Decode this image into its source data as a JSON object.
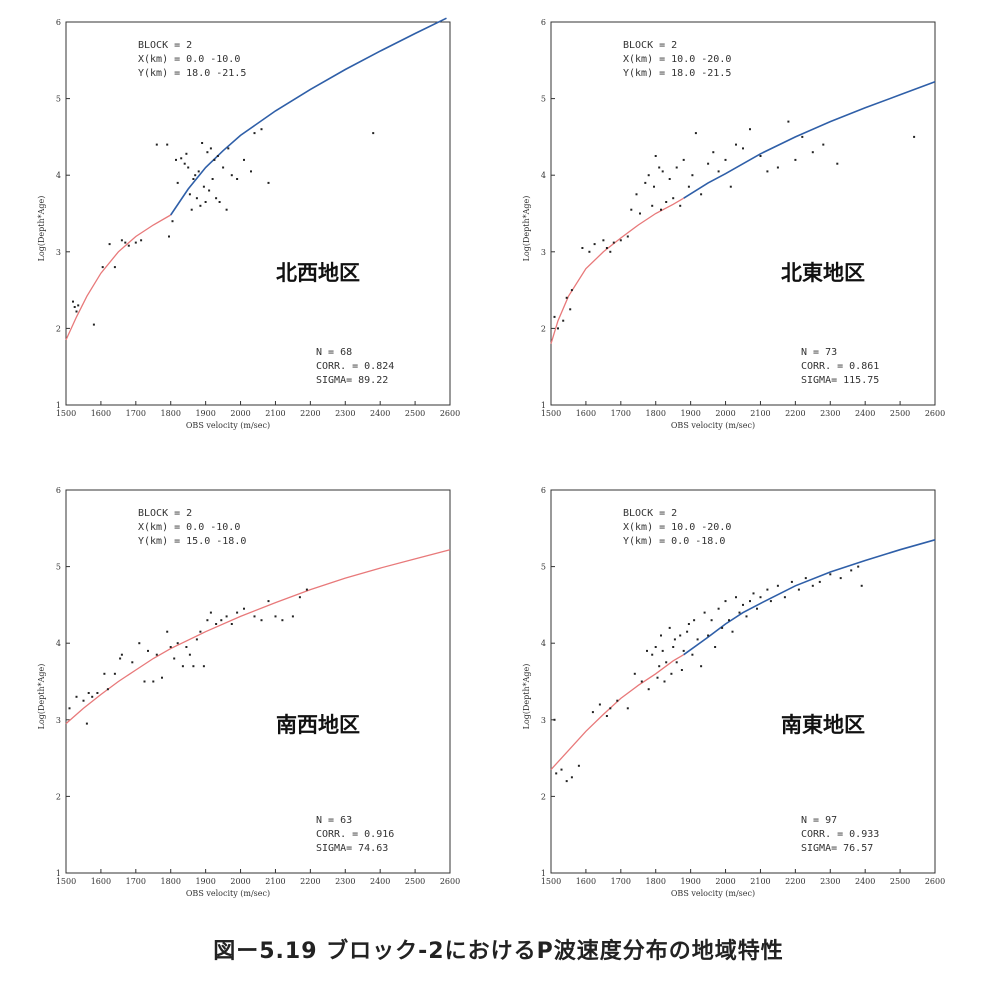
{
  "caption": "図ー5.19 ブロック-2におけるP波速度分布の地域特性",
  "colors": {
    "fit_red": "#e8797a",
    "fit_blue": "#2f5fa8",
    "points": "#222222",
    "frame": "#333333"
  },
  "chart_data": [
    {
      "type": "scatter",
      "region": "北西地区",
      "info": [
        "BLOCK = 2",
        "X(km) = 0.0 -10.0",
        "Y(km) = 18.0 -21.5"
      ],
      "stats": [
        "N = 68",
        "CORR. = 0.824",
        "SIGMA= 89.22"
      ],
      "xlabel": "OBS velocity (m/sec)",
      "ylabel": "Log(Depth*Age)",
      "xlim": [
        1500,
        2600
      ],
      "ylim": [
        1,
        6
      ],
      "xticks": [
        "1500",
        "1600",
        "1700",
        "1800",
        "1900",
        "2000",
        "2100",
        "2200",
        "2300",
        "2400",
        "2500",
        "2600"
      ],
      "yticks": [
        "1",
        "2",
        "3",
        "4",
        "5",
        "6"
      ],
      "fit": {
        "red": [
          [
            1500,
            1.85
          ],
          [
            1530,
            2.15
          ],
          [
            1560,
            2.42
          ],
          [
            1600,
            2.72
          ],
          [
            1650,
            3.0
          ],
          [
            1700,
            3.2
          ],
          [
            1750,
            3.35
          ],
          [
            1800,
            3.48
          ]
        ],
        "blue": [
          [
            1800,
            3.48
          ],
          [
            1850,
            3.82
          ],
          [
            1900,
            4.1
          ],
          [
            1950,
            4.32
          ],
          [
            2000,
            4.52
          ],
          [
            2100,
            4.84
          ],
          [
            2200,
            5.12
          ],
          [
            2300,
            5.38
          ],
          [
            2400,
            5.62
          ],
          [
            2500,
            5.85
          ],
          [
            2590,
            6.05
          ]
        ]
      },
      "points": [
        [
          1520,
          2.35
        ],
        [
          1525,
          2.28
        ],
        [
          1530,
          2.22
        ],
        [
          1535,
          2.3
        ],
        [
          1580,
          2.05
        ],
        [
          1605,
          2.8
        ],
        [
          1625,
          3.1
        ],
        [
          1640,
          2.8
        ],
        [
          1660,
          3.15
        ],
        [
          1670,
          3.12
        ],
        [
          1680,
          3.08
        ],
        [
          1700,
          3.12
        ],
        [
          1715,
          3.15
        ],
        [
          1760,
          4.4
        ],
        [
          1790,
          4.4
        ],
        [
          1795,
          3.2
        ],
        [
          1805,
          3.4
        ],
        [
          1815,
          4.2
        ],
        [
          1820,
          3.9
        ],
        [
          1830,
          4.22
        ],
        [
          1840,
          4.15
        ],
        [
          1845,
          4.28
        ],
        [
          1850,
          4.1
        ],
        [
          1855,
          3.75
        ],
        [
          1860,
          3.55
        ],
        [
          1865,
          3.95
        ],
        [
          1870,
          4.0
        ],
        [
          1875,
          3.7
        ],
        [
          1880,
          4.05
        ],
        [
          1885,
          3.6
        ],
        [
          1890,
          4.42
        ],
        [
          1895,
          3.85
        ],
        [
          1900,
          3.65
        ],
        [
          1905,
          4.3
        ],
        [
          1910,
          3.8
        ],
        [
          1915,
          4.35
        ],
        [
          1920,
          3.95
        ],
        [
          1925,
          4.2
        ],
        [
          1930,
          3.7
        ],
        [
          1935,
          4.25
        ],
        [
          1940,
          3.65
        ],
        [
          1950,
          4.1
        ],
        [
          1960,
          3.55
        ],
        [
          1965,
          4.35
        ],
        [
          1975,
          4.0
        ],
        [
          1990,
          3.95
        ],
        [
          2010,
          4.2
        ],
        [
          2030,
          4.05
        ],
        [
          2040,
          4.55
        ],
        [
          2060,
          4.6
        ],
        [
          2080,
          3.9
        ],
        [
          2380,
          4.55
        ]
      ]
    },
    {
      "type": "scatter",
      "region": "北東地区",
      "info": [
        "BLOCK = 2",
        "X(km) = 10.0 -20.0",
        "Y(km) = 18.0 -21.5"
      ],
      "stats": [
        "N = 73",
        "CORR. = 0.861",
        "SIGMA= 115.75"
      ],
      "xlabel": "OBS velocity (m/sec)",
      "ylabel": "Log(Depth*Age)",
      "xlim": [
        1500,
        2600
      ],
      "ylim": [
        1,
        6
      ],
      "xticks": [
        "1500",
        "1600",
        "1700",
        "1800",
        "1900",
        "2000",
        "2100",
        "2200",
        "2300",
        "2400",
        "2500",
        "2600"
      ],
      "yticks": [
        "1",
        "2",
        "3",
        "4",
        "5",
        "6"
      ],
      "fit": {
        "red": [
          [
            1500,
            1.8
          ],
          [
            1520,
            2.1
          ],
          [
            1550,
            2.42
          ],
          [
            1600,
            2.78
          ],
          [
            1650,
            3.0
          ],
          [
            1700,
            3.18
          ],
          [
            1750,
            3.35
          ],
          [
            1800,
            3.5
          ],
          [
            1850,
            3.62
          ],
          [
            1880,
            3.7
          ]
        ],
        "blue": [
          [
            1880,
            3.7
          ],
          [
            1950,
            3.9
          ],
          [
            2000,
            4.02
          ],
          [
            2100,
            4.28
          ],
          [
            2200,
            4.5
          ],
          [
            2300,
            4.7
          ],
          [
            2400,
            4.88
          ],
          [
            2500,
            5.05
          ],
          [
            2600,
            5.22
          ]
        ]
      },
      "points": [
        [
          1510,
          2.15
        ],
        [
          1520,
          2.0
        ],
        [
          1535,
          2.1
        ],
        [
          1545,
          2.4
        ],
        [
          1555,
          2.25
        ],
        [
          1560,
          2.5
        ],
        [
          1590,
          3.05
        ],
        [
          1610,
          3.0
        ],
        [
          1625,
          3.1
        ],
        [
          1650,
          3.15
        ],
        [
          1660,
          3.05
        ],
        [
          1670,
          3.0
        ],
        [
          1680,
          3.12
        ],
        [
          1700,
          3.15
        ],
        [
          1720,
          3.2
        ],
        [
          1730,
          3.55
        ],
        [
          1745,
          3.75
        ],
        [
          1755,
          3.5
        ],
        [
          1770,
          3.9
        ],
        [
          1780,
          4.0
        ],
        [
          1790,
          3.6
        ],
        [
          1795,
          3.85
        ],
        [
          1800,
          4.25
        ],
        [
          1810,
          4.1
        ],
        [
          1815,
          3.55
        ],
        [
          1820,
          4.05
        ],
        [
          1830,
          3.65
        ],
        [
          1840,
          3.95
        ],
        [
          1850,
          3.7
        ],
        [
          1860,
          4.1
        ],
        [
          1870,
          3.6
        ],
        [
          1880,
          4.2
        ],
        [
          1895,
          3.85
        ],
        [
          1905,
          4.0
        ],
        [
          1915,
          4.55
        ],
        [
          1930,
          3.75
        ],
        [
          1950,
          4.15
        ],
        [
          1965,
          4.3
        ],
        [
          1980,
          4.05
        ],
        [
          2000,
          4.2
        ],
        [
          2015,
          3.85
        ],
        [
          2030,
          4.4
        ],
        [
          2050,
          4.35
        ],
        [
          2070,
          4.6
        ],
        [
          2100,
          4.25
        ],
        [
          2120,
          4.05
        ],
        [
          2150,
          4.1
        ],
        [
          2180,
          4.7
        ],
        [
          2200,
          4.2
        ],
        [
          2220,
          4.5
        ],
        [
          2250,
          4.3
        ],
        [
          2280,
          4.4
        ],
        [
          2320,
          4.15
        ],
        [
          2540,
          4.5
        ]
      ]
    },
    {
      "type": "scatter",
      "region": "南西地区",
      "info": [
        "BLOCK = 2",
        "X(km) = 0.0 -10.0",
        "Y(km) = 15.0 -18.0"
      ],
      "stats": [
        "N = 63",
        "CORR. = 0.916",
        "SIGMA= 74.63"
      ],
      "xlabel": "OBS velocity (m/sec)",
      "ylabel": "Log(Depth*Age)",
      "xlim": [
        1500,
        2600
      ],
      "ylim": [
        1,
        6
      ],
      "xticks": [
        "1500",
        "1600",
        "1700",
        "1800",
        "1900",
        "2000",
        "2100",
        "2200",
        "2300",
        "2400",
        "2500",
        "2600"
      ],
      "yticks": [
        "1",
        "2",
        "3",
        "4",
        "5",
        "6"
      ],
      "fit": {
        "red": [
          [
            1500,
            2.95
          ],
          [
            1550,
            3.15
          ],
          [
            1600,
            3.33
          ],
          [
            1650,
            3.5
          ],
          [
            1700,
            3.65
          ],
          [
            1750,
            3.8
          ],
          [
            1800,
            3.93
          ],
          [
            1900,
            4.15
          ],
          [
            2000,
            4.35
          ],
          [
            2100,
            4.53
          ],
          [
            2200,
            4.7
          ],
          [
            2300,
            4.85
          ],
          [
            2400,
            4.98
          ],
          [
            2500,
            5.1
          ],
          [
            2600,
            5.22
          ]
        ]
      },
      "points": [
        [
          1510,
          3.15
        ],
        [
          1530,
          3.3
        ],
        [
          1550,
          3.25
        ],
        [
          1560,
          2.95
        ],
        [
          1565,
          3.35
        ],
        [
          1575,
          3.3
        ],
        [
          1590,
          3.35
        ],
        [
          1610,
          3.6
        ],
        [
          1620,
          3.4
        ],
        [
          1640,
          3.6
        ],
        [
          1655,
          3.8
        ],
        [
          1660,
          3.85
        ],
        [
          1690,
          3.75
        ],
        [
          1710,
          4.0
        ],
        [
          1725,
          3.5
        ],
        [
          1735,
          3.9
        ],
        [
          1750,
          3.5
        ],
        [
          1760,
          3.85
        ],
        [
          1775,
          3.55
        ],
        [
          1790,
          4.15
        ],
        [
          1800,
          3.95
        ],
        [
          1810,
          3.8
        ],
        [
          1820,
          4.0
        ],
        [
          1835,
          3.7
        ],
        [
          1845,
          3.95
        ],
        [
          1855,
          3.85
        ],
        [
          1865,
          3.7
        ],
        [
          1875,
          4.05
        ],
        [
          1885,
          4.15
        ],
        [
          1895,
          3.7
        ],
        [
          1905,
          4.3
        ],
        [
          1915,
          4.4
        ],
        [
          1930,
          4.25
        ],
        [
          1945,
          4.3
        ],
        [
          1960,
          4.35
        ],
        [
          1975,
          4.25
        ],
        [
          1990,
          4.4
        ],
        [
          2010,
          4.45
        ],
        [
          2040,
          4.35
        ],
        [
          2060,
          4.3
        ],
        [
          2080,
          4.55
        ],
        [
          2100,
          4.35
        ],
        [
          2120,
          4.3
        ],
        [
          2150,
          4.35
        ],
        [
          2170,
          4.6
        ],
        [
          2190,
          4.7
        ]
      ]
    },
    {
      "type": "scatter",
      "region": "南東地区",
      "info": [
        "BLOCK = 2",
        "X(km) = 10.0 -20.0",
        "Y(km) = 0.0 -18.0"
      ],
      "stats": [
        "N = 97",
        "CORR. = 0.933",
        "SIGMA= 76.57"
      ],
      "xlabel": "OBS velocity (m/sec)",
      "ylabel": "Log(Depth*Age)",
      "xlim": [
        1500,
        2600
      ],
      "ylim": [
        1,
        6
      ],
      "xticks": [
        "1500",
        "1600",
        "1700",
        "1800",
        "1900",
        "2000",
        "2100",
        "2200",
        "2300",
        "2400",
        "2500",
        "2600"
      ],
      "yticks": [
        "1",
        "2",
        "3",
        "4",
        "5",
        "6"
      ],
      "fit": {
        "red": [
          [
            1500,
            2.35
          ],
          [
            1550,
            2.6
          ],
          [
            1600,
            2.85
          ],
          [
            1650,
            3.07
          ],
          [
            1700,
            3.28
          ],
          [
            1750,
            3.45
          ],
          [
            1800,
            3.6
          ],
          [
            1850,
            3.77
          ],
          [
            1880,
            3.85
          ]
        ],
        "blue": [
          [
            1880,
            3.85
          ],
          [
            1950,
            4.08
          ],
          [
            2000,
            4.25
          ],
          [
            2050,
            4.4
          ],
          [
            2100,
            4.52
          ],
          [
            2200,
            4.75
          ],
          [
            2300,
            4.93
          ],
          [
            2400,
            5.08
          ],
          [
            2500,
            5.22
          ],
          [
            2600,
            5.35
          ]
        ]
      },
      "points": [
        [
          1510,
          3.0
        ],
        [
          1515,
          2.3
        ],
        [
          1530,
          2.35
        ],
        [
          1545,
          2.2
        ],
        [
          1560,
          2.25
        ],
        [
          1580,
          2.4
        ],
        [
          1620,
          3.1
        ],
        [
          1640,
          3.2
        ],
        [
          1660,
          3.05
        ],
        [
          1670,
          3.15
        ],
        [
          1690,
          3.25
        ],
        [
          1720,
          3.15
        ],
        [
          1740,
          3.6
        ],
        [
          1760,
          3.5
        ],
        [
          1775,
          3.9
        ],
        [
          1780,
          3.4
        ],
        [
          1790,
          3.85
        ],
        [
          1800,
          3.95
        ],
        [
          1805,
          3.55
        ],
        [
          1810,
          3.7
        ],
        [
          1815,
          4.1
        ],
        [
          1820,
          3.9
        ],
        [
          1825,
          3.5
        ],
        [
          1830,
          3.75
        ],
        [
          1840,
          4.2
        ],
        [
          1845,
          3.6
        ],
        [
          1850,
          3.95
        ],
        [
          1855,
          4.05
        ],
        [
          1860,
          3.75
        ],
        [
          1870,
          4.1
        ],
        [
          1875,
          3.65
        ],
        [
          1880,
          3.9
        ],
        [
          1890,
          4.15
        ],
        [
          1895,
          4.25
        ],
        [
          1905,
          3.85
        ],
        [
          1910,
          4.3
        ],
        [
          1920,
          4.05
        ],
        [
          1930,
          3.7
        ],
        [
          1940,
          4.4
        ],
        [
          1950,
          4.1
        ],
        [
          1960,
          4.3
        ],
        [
          1970,
          3.95
        ],
        [
          1980,
          4.45
        ],
        [
          1990,
          4.2
        ],
        [
          2000,
          4.55
        ],
        [
          2010,
          4.3
        ],
        [
          2020,
          4.15
        ],
        [
          2030,
          4.6
        ],
        [
          2040,
          4.4
        ],
        [
          2050,
          4.5
        ],
        [
          2060,
          4.35
        ],
        [
          2070,
          4.55
        ],
        [
          2080,
          4.65
        ],
        [
          2090,
          4.45
        ],
        [
          2100,
          4.6
        ],
        [
          2120,
          4.7
        ],
        [
          2130,
          4.55
        ],
        [
          2150,
          4.75
        ],
        [
          2170,
          4.6
        ],
        [
          2190,
          4.8
        ],
        [
          2210,
          4.7
        ],
        [
          2230,
          4.85
        ],
        [
          2250,
          4.75
        ],
        [
          2270,
          4.8
        ],
        [
          2300,
          4.9
        ],
        [
          2330,
          4.85
        ],
        [
          2360,
          4.95
        ],
        [
          2380,
          5.0
        ],
        [
          2390,
          4.75
        ]
      ]
    }
  ]
}
